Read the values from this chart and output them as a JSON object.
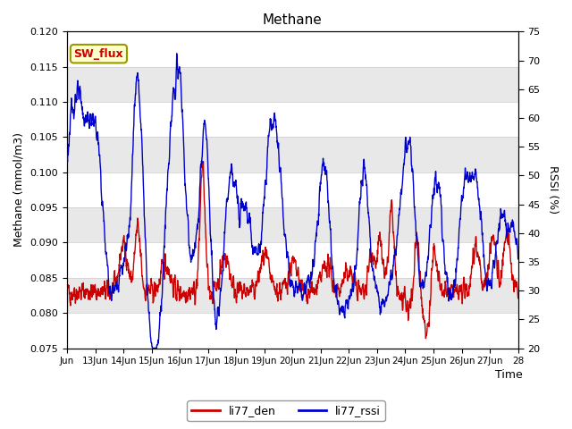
{
  "title": "Methane",
  "ylabel_left": "Methane (mmol/m3)",
  "ylabel_right": "RSSI (%)",
  "xlabel": "Time",
  "ylim_left": [
    0.075,
    0.12
  ],
  "ylim_right": [
    20,
    75
  ],
  "yticks_left": [
    0.075,
    0.08,
    0.085,
    0.09,
    0.095,
    0.1,
    0.105,
    0.11,
    0.115,
    0.12
  ],
  "yticks_right": [
    20,
    25,
    30,
    35,
    40,
    45,
    50,
    55,
    60,
    65,
    70,
    75
  ],
  "xtick_labels": [
    "Jun",
    "13Jun",
    "14Jun",
    "15Jun",
    "16Jun",
    "17Jun",
    "18Jun",
    "19Jun",
    "20Jun",
    "21Jun",
    "22Jun",
    "23Jun",
    "24Jun",
    "25Jun",
    "26Jun",
    "27Jun",
    "28"
  ],
  "color_red": "#cc0000",
  "color_blue": "#0000cc",
  "legend_labels": [
    "li77_den",
    "li77_rssi"
  ],
  "annotation_text": "SW_flux",
  "annotation_box_facecolor": "#ffffcc",
  "annotation_box_edgecolor": "#999900",
  "annotation_text_color": "#cc0000",
  "fig_facecolor": "#ffffff",
  "band_colors": [
    "#ffffff",
    "#e8e8e8"
  ],
  "line_width": 1.0,
  "grid_color": "#cccccc",
  "num_points": 2000
}
